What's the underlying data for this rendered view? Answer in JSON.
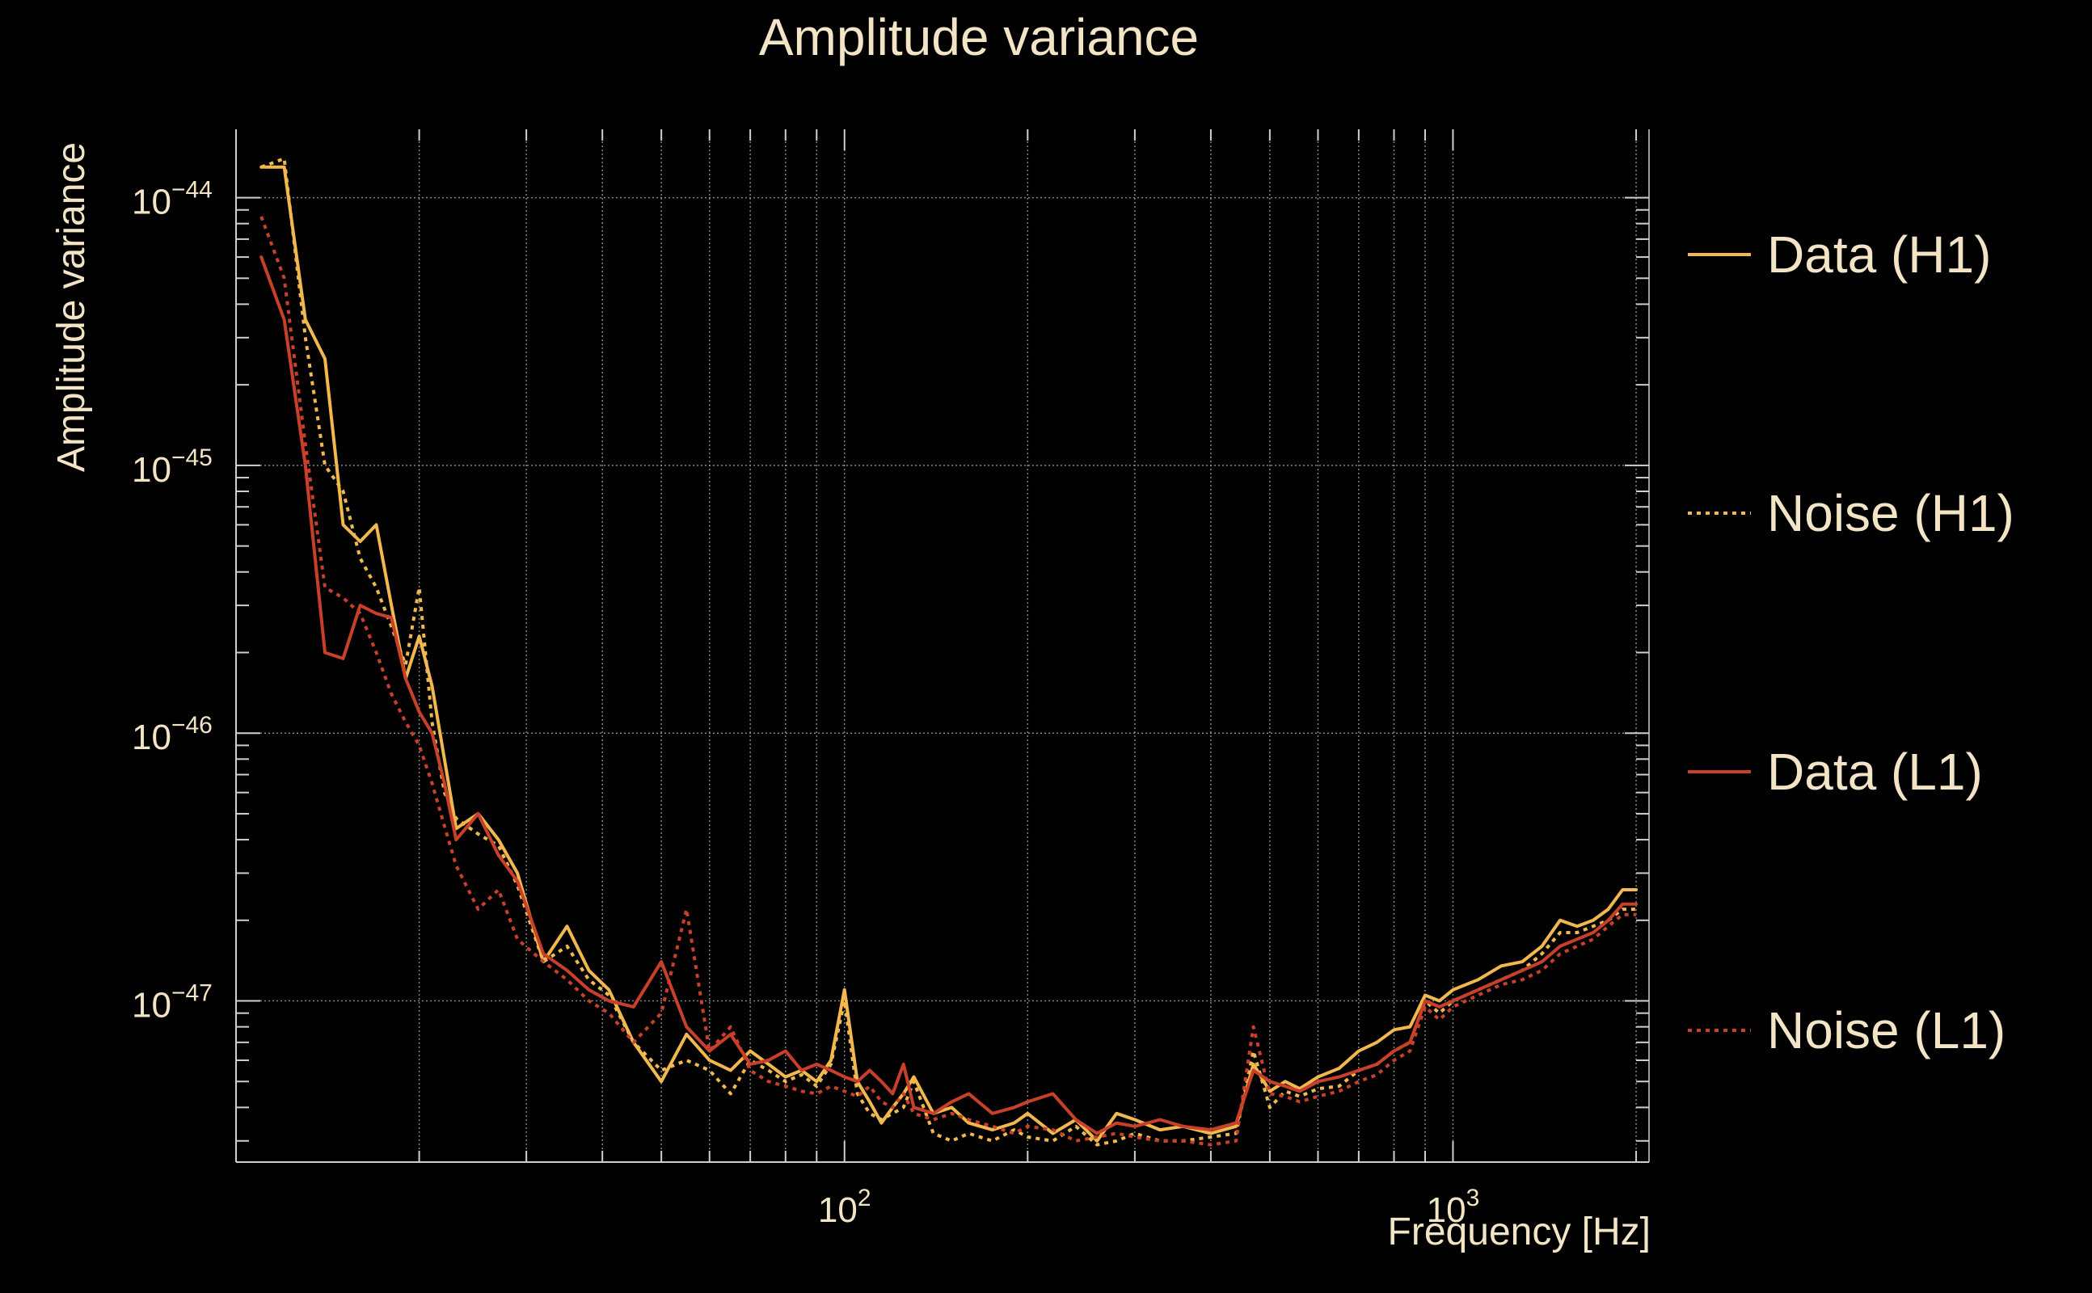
{
  "colors": {
    "background": "#000000",
    "text": "#f2e4c4",
    "grid": "#9a9a9a",
    "axis": "#cfcfcf",
    "h1": "#f0b84e",
    "l1": "#c8402a"
  },
  "chart_data": {
    "type": "line",
    "title": "Amplitude variance",
    "xlabel": "Frequency [Hz]",
    "ylabel": "Amplitude variance",
    "xscale": "log",
    "yscale": "log",
    "xlim": [
      10,
      2100
    ],
    "ylim": [
      2.5e-48,
      1.8e-44
    ],
    "grid": true,
    "legend_position": "right",
    "x_ticks": [
      {
        "value": 100,
        "base": "10",
        "exp": "2"
      },
      {
        "value": 1000,
        "base": "10",
        "exp": "3"
      }
    ],
    "y_ticks": [
      {
        "value": 1e-44,
        "base": "10",
        "exp": "−44"
      },
      {
        "value": 1e-45,
        "base": "10",
        "exp": "−45"
      },
      {
        "value": 1e-46,
        "base": "10",
        "exp": "−46"
      },
      {
        "value": 1e-47,
        "base": "10",
        "exp": "−47"
      }
    ],
    "series": [
      {
        "name": "Data (H1)",
        "color": "#f0b84e",
        "style": "solid",
        "x": [
          11,
          12,
          13,
          14,
          15,
          16,
          17,
          18,
          19,
          20,
          21,
          22,
          23,
          25,
          27,
          29,
          32,
          35,
          38,
          41,
          45,
          50,
          55,
          60,
          65,
          70,
          75,
          80,
          85,
          90,
          95,
          100,
          105,
          110,
          115,
          120,
          125,
          130,
          140,
          150,
          160,
          175,
          190,
          200,
          220,
          240,
          260,
          280,
          300,
          330,
          360,
          400,
          440,
          470,
          500,
          530,
          560,
          600,
          650,
          700,
          750,
          800,
          850,
          900,
          950,
          1000,
          1100,
          1200,
          1300,
          1400,
          1500,
          1600,
          1700,
          1800,
          1900,
          2000
        ],
        "y": [
          1.3e-44,
          1.3e-44,
          3.5e-45,
          2.5e-45,
          6e-46,
          5.2e-46,
          6e-46,
          3e-46,
          1.6e-46,
          2.3e-46,
          1.5e-46,
          8e-47,
          4.4e-47,
          5e-47,
          4e-47,
          3e-47,
          1.4e-47,
          1.9e-47,
          1.3e-47,
          1.1e-47,
          7e-48,
          5e-48,
          7.5e-48,
          6e-48,
          5.5e-48,
          6.5e-48,
          5.8e-48,
          5.2e-48,
          5.5e-48,
          5e-48,
          6e-48,
          1.1e-47,
          5e-48,
          4.2e-48,
          3.5e-48,
          4e-48,
          4.5e-48,
          5.2e-48,
          3.8e-48,
          4e-48,
          3.5e-48,
          3.3e-48,
          3.5e-48,
          3.8e-48,
          3.2e-48,
          3.6e-48,
          3e-48,
          3.8e-48,
          3.6e-48,
          3.3e-48,
          3.4e-48,
          3.2e-48,
          3.4e-48,
          5.8e-48,
          4.6e-48,
          5e-48,
          4.7e-48,
          5.2e-48,
          5.6e-48,
          6.5e-48,
          7e-48,
          7.8e-48,
          8e-48,
          1.05e-47,
          1e-47,
          1.1e-47,
          1.2e-47,
          1.35e-47,
          1.4e-47,
          1.6e-47,
          2e-47,
          1.9e-47,
          2e-47,
          2.2e-47,
          2.6e-47,
          2.6e-47
        ]
      },
      {
        "name": "Noise (H1)",
        "color": "#f0b84e",
        "style": "dotted",
        "x": [
          11,
          12,
          13,
          14,
          15,
          16,
          17,
          18,
          19,
          20,
          21,
          22,
          23,
          25,
          27,
          29,
          32,
          35,
          38,
          41,
          45,
          50,
          55,
          60,
          65,
          70,
          75,
          80,
          85,
          90,
          95,
          100,
          105,
          110,
          115,
          120,
          125,
          130,
          140,
          150,
          160,
          175,
          190,
          200,
          220,
          240,
          260,
          280,
          300,
          330,
          360,
          400,
          440,
          470,
          500,
          530,
          560,
          600,
          650,
          700,
          750,
          800,
          850,
          900,
          950,
          1000,
          1100,
          1200,
          1300,
          1400,
          1500,
          1600,
          1700,
          1800,
          1900,
          2000
        ],
        "y": [
          1.3e-44,
          1.4e-44,
          3e-45,
          1e-45,
          8e-46,
          4.5e-46,
          3.5e-46,
          2.5e-46,
          1.8e-46,
          3.5e-46,
          1.1e-46,
          6e-47,
          4.8e-47,
          4.2e-47,
          3.8e-47,
          2.7e-47,
          1.4e-47,
          1.6e-47,
          1.2e-47,
          1.05e-47,
          7e-48,
          5.5e-48,
          6e-48,
          5.5e-48,
          4.5e-48,
          6e-48,
          5.5e-48,
          5e-48,
          5.3e-48,
          4.8e-48,
          5.8e-48,
          1e-47,
          4.5e-48,
          3.8e-48,
          3.6e-48,
          3.8e-48,
          4e-48,
          5e-48,
          3.2e-48,
          3e-48,
          3.2e-48,
          3e-48,
          3.3e-48,
          3.1e-48,
          3e-48,
          3.4e-48,
          2.9e-48,
          3e-48,
          3.2e-48,
          3e-48,
          3e-48,
          3.1e-48,
          3.2e-48,
          6.5e-48,
          4e-48,
          4.6e-48,
          4.4e-48,
          4.7e-48,
          4.8e-48,
          5.5e-48,
          5.8e-48,
          6.5e-48,
          7e-48,
          1e-47,
          9e-48,
          1e-47,
          1.1e-47,
          1.2e-47,
          1.3e-47,
          1.5e-47,
          1.8e-47,
          1.8e-47,
          1.9e-47,
          2e-47,
          2.2e-47,
          2.2e-47
        ]
      },
      {
        "name": "Data (L1)",
        "color": "#c8402a",
        "style": "solid",
        "x": [
          11,
          12,
          13,
          14,
          15,
          16,
          17,
          18,
          19,
          20,
          21,
          22,
          23,
          25,
          27,
          29,
          32,
          35,
          38,
          41,
          45,
          50,
          55,
          60,
          65,
          70,
          75,
          80,
          85,
          90,
          95,
          100,
          105,
          110,
          115,
          120,
          125,
          130,
          140,
          150,
          160,
          175,
          190,
          200,
          220,
          240,
          260,
          280,
          300,
          330,
          360,
          400,
          440,
          470,
          500,
          530,
          560,
          600,
          650,
          700,
          750,
          800,
          850,
          900,
          950,
          1000,
          1100,
          1200,
          1300,
          1400,
          1500,
          1600,
          1700,
          1800,
          1900,
          2000
        ],
        "y": [
          6e-45,
          3.5e-45,
          1e-45,
          2e-46,
          1.9e-46,
          3e-46,
          2.8e-46,
          2.7e-46,
          1.6e-46,
          1.2e-46,
          1e-46,
          6.5e-47,
          4e-47,
          5e-47,
          3.5e-47,
          2.8e-47,
          1.5e-47,
          1.3e-47,
          1.1e-47,
          1e-47,
          9.5e-48,
          1.4e-47,
          8e-48,
          6.5e-48,
          7.5e-48,
          5.8e-48,
          6e-48,
          6.5e-48,
          5.5e-48,
          5.8e-48,
          5.5e-48,
          5.2e-48,
          5e-48,
          5.5e-48,
          5e-48,
          4.5e-48,
          5.8e-48,
          4e-48,
          3.8e-48,
          4.2e-48,
          4.5e-48,
          3.8e-48,
          4e-48,
          4.2e-48,
          4.5e-48,
          3.6e-48,
          3.2e-48,
          3.5e-48,
          3.4e-48,
          3.6e-48,
          3.4e-48,
          3.3e-48,
          3.5e-48,
          5.5e-48,
          5e-48,
          4.8e-48,
          4.6e-48,
          5e-48,
          5.2e-48,
          5.5e-48,
          5.8e-48,
          6.5e-48,
          7e-48,
          1e-47,
          9.5e-48,
          1e-47,
          1.1e-47,
          1.2e-47,
          1.3e-47,
          1.4e-47,
          1.6e-47,
          1.7e-47,
          1.8e-47,
          2e-47,
          2.3e-47,
          2.3e-47
        ]
      },
      {
        "name": "Noise (L1)",
        "color": "#c8402a",
        "style": "dotted",
        "x": [
          11,
          12,
          13,
          14,
          15,
          16,
          17,
          18,
          19,
          20,
          21,
          22,
          23,
          25,
          27,
          29,
          32,
          35,
          38,
          41,
          45,
          50,
          55,
          60,
          65,
          70,
          75,
          80,
          85,
          90,
          95,
          100,
          105,
          110,
          115,
          120,
          125,
          130,
          140,
          150,
          160,
          175,
          190,
          200,
          220,
          240,
          260,
          280,
          300,
          330,
          360,
          400,
          440,
          470,
          500,
          530,
          560,
          600,
          650,
          700,
          750,
          800,
          850,
          900,
          950,
          1000,
          1100,
          1200,
          1300,
          1400,
          1500,
          1600,
          1700,
          1800,
          1900,
          2000
        ],
        "y": [
          8.5e-45,
          5e-45,
          1.2e-45,
          3.5e-46,
          3.2e-46,
          2.8e-46,
          2e-46,
          1.4e-46,
          1.1e-46,
          9e-47,
          6.5e-47,
          4.5e-47,
          3.2e-47,
          2.2e-47,
          2.6e-47,
          1.7e-47,
          1.4e-47,
          1.2e-47,
          1e-47,
          9e-48,
          7e-48,
          9e-48,
          2.2e-47,
          6.5e-48,
          8e-48,
          5.5e-48,
          5e-48,
          4.8e-48,
          4.6e-48,
          4.5e-48,
          4.8e-48,
          4.6e-48,
          4.4e-48,
          4.8e-48,
          4.2e-48,
          4e-48,
          4.5e-48,
          3.8e-48,
          3.6e-48,
          3.8e-48,
          3.6e-48,
          3.4e-48,
          3.2e-48,
          3.4e-48,
          3.3e-48,
          3e-48,
          3.1e-48,
          3.2e-48,
          3.1e-48,
          3e-48,
          3e-48,
          2.9e-48,
          3e-48,
          8e-48,
          4.5e-48,
          4.4e-48,
          4.2e-48,
          4.4e-48,
          4.6e-48,
          5e-48,
          5.3e-48,
          6e-48,
          6.5e-48,
          9.5e-48,
          8.5e-48,
          9.5e-48,
          1.05e-47,
          1.15e-47,
          1.2e-47,
          1.3e-47,
          1.5e-47,
          1.6e-47,
          1.7e-47,
          1.9e-47,
          2.1e-47,
          2.1e-47
        ]
      }
    ]
  }
}
